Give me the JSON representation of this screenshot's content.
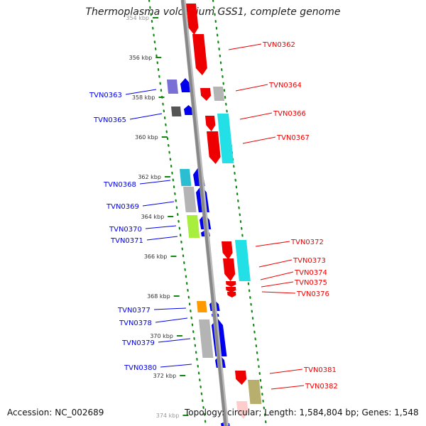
{
  "title": "Thermoplasma volcanium GSS1, complete genome",
  "footer": {
    "accession": "Accession: NC_002689",
    "topology": "Topology: circular; Length: 1,584,804 bp; Genes: 1,548"
  },
  "colors": {
    "forward": "#0000ee",
    "reverse": "#ee0000",
    "backbone": "#888888",
    "ticks": "#118811"
  },
  "scale": {
    "ticks": [
      {
        "kbp": 354,
        "label": "354 kbp"
      },
      {
        "kbp": 356,
        "label": "356 kbp"
      },
      {
        "kbp": 358,
        "label": "358 kbp"
      },
      {
        "kbp": 360,
        "label": "360 kbp"
      },
      {
        "kbp": 362,
        "label": "362 kbp"
      },
      {
        "kbp": 364,
        "label": "364 kbp"
      },
      {
        "kbp": 366,
        "label": "366 kbp"
      },
      {
        "kbp": 368,
        "label": "368 kbp"
      },
      {
        "kbp": 370,
        "label": "370 kbp"
      },
      {
        "kbp": 372,
        "label": "372 kbp"
      },
      {
        "kbp": 374,
        "label": "374 kbp"
      }
    ]
  },
  "genes": {
    "forward": [
      {
        "label": "TVN0363"
      },
      {
        "label": "TVN0365"
      },
      {
        "label": "TVN0368"
      },
      {
        "label": "TVN0369"
      },
      {
        "label": "TVN0370"
      },
      {
        "label": "TVN0371"
      },
      {
        "label": "TVN0377"
      },
      {
        "label": "TVN0378"
      },
      {
        "label": "TVN0379"
      },
      {
        "label": "TVN0380"
      }
    ],
    "reverse": [
      {
        "label": "TVN0362"
      },
      {
        "label": "TVN0364"
      },
      {
        "label": "TVN0366"
      },
      {
        "label": "TVN0367"
      },
      {
        "label": "TVN0372"
      },
      {
        "label": "TVN0373"
      },
      {
        "label": "TVN0374"
      },
      {
        "label": "TVN0375"
      },
      {
        "label": "TVN0376"
      },
      {
        "label": "TVN0381"
      },
      {
        "label": "TVN0382"
      }
    ]
  }
}
